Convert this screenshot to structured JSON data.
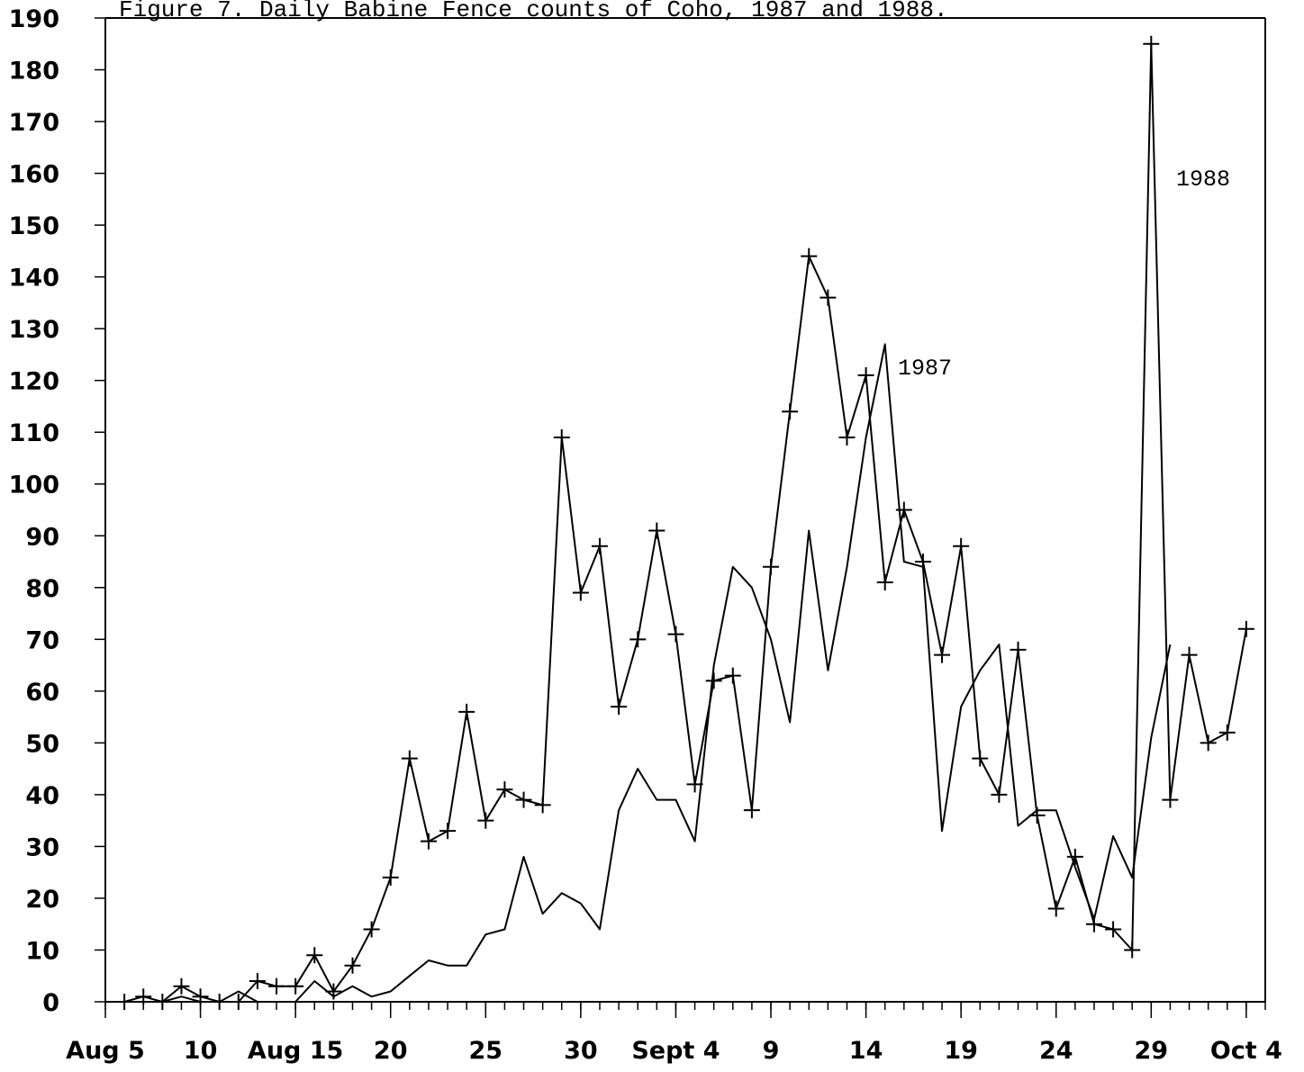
{
  "chart_data": {
    "type": "line",
    "title": "Figure 7. Daily Babine Fence counts of Coho, 1987 and 1988.",
    "xlabel": "",
    "ylabel": "",
    "ylim": [
      0,
      190
    ],
    "yticks": [
      0,
      10,
      20,
      30,
      40,
      50,
      60,
      70,
      80,
      90,
      100,
      110,
      120,
      130,
      140,
      150,
      160,
      170,
      180,
      190
    ],
    "xlim": [
      "Aug 5",
      "Oct 5"
    ],
    "x_tick_labels": [
      {
        "date": "Aug 5",
        "label": "Aug 5"
      },
      {
        "date": "Aug 10",
        "label": "10"
      },
      {
        "date": "Aug 15",
        "label": "Aug 15"
      },
      {
        "date": "Aug 20",
        "label": "20"
      },
      {
        "date": "Aug 25",
        "label": "25"
      },
      {
        "date": "Aug 30",
        "label": "30"
      },
      {
        "date": "Sept 4",
        "label": "Sept 4"
      },
      {
        "date": "Sept 9",
        "label": "9"
      },
      {
        "date": "Sept 14",
        "label": "14"
      },
      {
        "date": "Sept 19",
        "label": "19"
      },
      {
        "date": "Sept 24",
        "label": "24"
      },
      {
        "date": "Sept 29",
        "label": "29"
      },
      {
        "date": "Oct 4",
        "label": "Oct 4"
      }
    ],
    "grid": false,
    "series": [
      {
        "name": "1988",
        "marker": "plus",
        "x": [
          "Aug 6",
          "Aug 7",
          "Aug 8",
          "Aug 9",
          "Aug 10",
          "Aug 11",
          "Aug 12",
          "Aug 13",
          "Aug 14",
          "Aug 15",
          "Aug 16",
          "Aug 17",
          "Aug 18",
          "Aug 19",
          "Aug 20",
          "Aug 21",
          "Aug 22",
          "Aug 23",
          "Aug 24",
          "Aug 25",
          "Aug 26",
          "Aug 27",
          "Aug 28",
          "Aug 29",
          "Aug 30",
          "Aug 31",
          "Sept 1",
          "Sept 2",
          "Sept 3",
          "Sept 4",
          "Sept 5",
          "Sept 6",
          "Sept 7",
          "Sept 8",
          "Sept 9",
          "Sept 10",
          "Sept 11",
          "Sept 12",
          "Sept 13",
          "Sept 14",
          "Sept 15",
          "Sept 16",
          "Sept 17",
          "Sept 18",
          "Sept 19",
          "Sept 20",
          "Sept 21",
          "Sept 22",
          "Sept 23",
          "Sept 24",
          "Sept 25",
          "Sept 26",
          "Sept 27",
          "Sept 28",
          "Sept 29",
          "Sept 30",
          "Oct 1",
          "Oct 2",
          "Oct 3",
          "Oct 4"
        ],
        "y": [
          0,
          1,
          0,
          3,
          1,
          0,
          0,
          4,
          3,
          3,
          9,
          2,
          7,
          14,
          24,
          47,
          31,
          33,
          56,
          35,
          41,
          39,
          38,
          109,
          79,
          88,
          57,
          70,
          91,
          71,
          42,
          62,
          63,
          37,
          84,
          114,
          144,
          136,
          109,
          121,
          81,
          95,
          85,
          67,
          88,
          47,
          40,
          68,
          36,
          18,
          28,
          15,
          14,
          10,
          185,
          39,
          67,
          50,
          52,
          72
        ]
      },
      {
        "name": "1987",
        "marker": "none",
        "x": [
          "Aug 6",
          "Aug 7",
          "Aug 8",
          "Aug 9",
          "Aug 10",
          "Aug 11",
          "Aug 12",
          "Aug 13",
          "Aug 14",
          "Aug 15",
          "Aug 16",
          "Aug 17",
          "Aug 18",
          "Aug 19",
          "Aug 20",
          "Aug 21",
          "Aug 22",
          "Aug 23",
          "Aug 24",
          "Aug 25",
          "Aug 26",
          "Aug 27",
          "Aug 28",
          "Aug 29",
          "Aug 30",
          "Aug 31",
          "Sept 1",
          "Sept 2",
          "Sept 3",
          "Sept 4",
          "Sept 5",
          "Sept 6",
          "Sept 7",
          "Sept 8",
          "Sept 9",
          "Sept 10",
          "Sept 11",
          "Sept 12",
          "Sept 13",
          "Sept 14",
          "Sept 15",
          "Sept 16",
          "Sept 17",
          "Sept 18",
          "Sept 19",
          "Sept 20",
          "Sept 21",
          "Sept 22",
          "Sept 23",
          "Sept 24",
          "Sept 25",
          "Sept 26",
          "Sept 27",
          "Sept 28",
          "Sept 29",
          "Sept 30"
        ],
        "y": [
          0,
          0,
          0,
          1,
          0,
          0,
          2,
          0,
          0,
          0,
          4,
          1,
          3,
          1,
          2,
          5,
          8,
          7,
          7,
          13,
          14,
          28,
          17,
          21,
          19,
          14,
          37,
          45,
          39,
          39,
          31,
          65,
          84,
          80,
          70,
          54,
          91,
          64,
          84,
          109,
          127,
          85,
          84,
          33,
          57,
          64,
          69,
          34,
          37,
          37,
          26,
          16,
          32,
          24,
          51,
          69
        ]
      }
    ],
    "annotations": [
      {
        "text": "1988",
        "series": "1988"
      },
      {
        "text": "1987",
        "series": "1987"
      }
    ]
  }
}
